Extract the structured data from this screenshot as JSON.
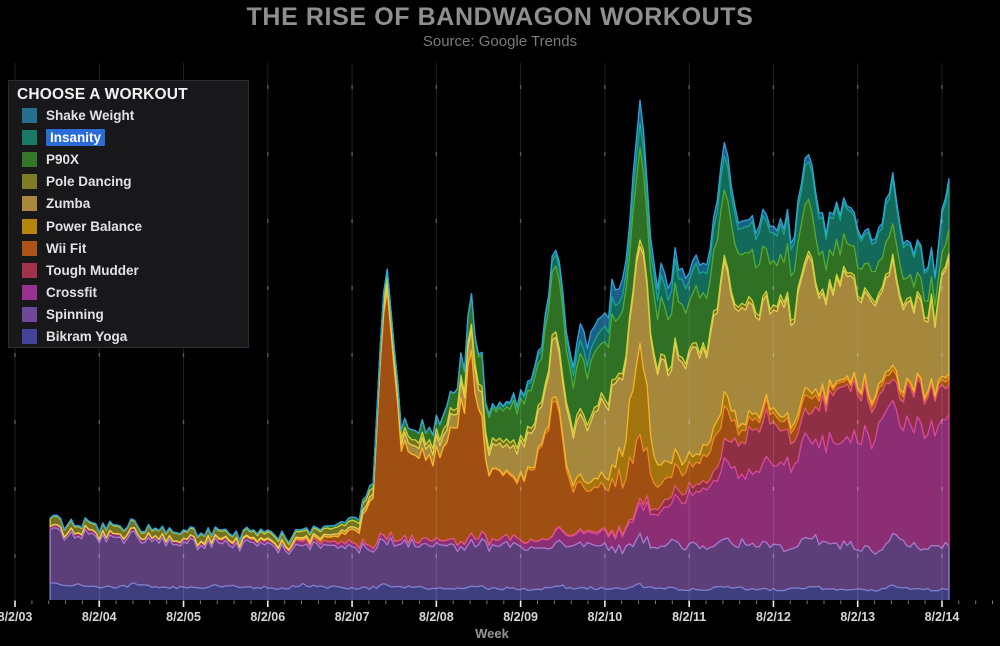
{
  "legend": {
    "header": "CHOOSE A WORKOUT",
    "selection_color": "#2a6bd8",
    "selected_item": "Insanity"
  },
  "chart_data": {
    "type": "area",
    "stacked": true,
    "title": "THE RISE OF BANDWAGON WORKOUTS",
    "subtitle": "Source: Google Trends",
    "xlabel": "Week",
    "ylabel": "",
    "y_axis": "hidden (relative search interest, arbitrary units)",
    "background": "#000000",
    "grid": "vertical-yearly",
    "legend_position": "top-left",
    "x_unit": "decimal_year",
    "x_range": [
      2003.583,
      2014.75
    ],
    "x_ticks": [
      {
        "pos": 2003.583,
        "label": "8/2/03"
      },
      {
        "pos": 2004.583,
        "label": "8/2/04"
      },
      {
        "pos": 2005.583,
        "label": "8/2/05"
      },
      {
        "pos": 2006.583,
        "label": "8/2/06"
      },
      {
        "pos": 2007.583,
        "label": "8/2/07"
      },
      {
        "pos": 2008.583,
        "label": "8/2/08"
      },
      {
        "pos": 2009.583,
        "label": "8/2/09"
      },
      {
        "pos": 2010.583,
        "label": "8/2/10"
      },
      {
        "pos": 2011.583,
        "label": "8/2/11"
      },
      {
        "pos": 2012.583,
        "label": "8/2/12"
      },
      {
        "pos": 2013.583,
        "label": "8/2/13"
      },
      {
        "pos": 2014.583,
        "label": "8/2/14"
      }
    ],
    "x": [
      2004.0,
      2004.167,
      2004.333,
      2004.5,
      2004.667,
      2004.833,
      2005.0,
      2005.167,
      2005.333,
      2005.5,
      2005.667,
      2005.833,
      2006.0,
      2006.167,
      2006.333,
      2006.5,
      2006.667,
      2006.833,
      2007.0,
      2007.167,
      2007.333,
      2007.5,
      2007.667,
      2007.833,
      2008.0,
      2008.167,
      2008.333,
      2008.5,
      2008.667,
      2008.833,
      2009.0,
      2009.167,
      2009.333,
      2009.5,
      2009.667,
      2009.833,
      2010.0,
      2010.167,
      2010.333,
      2010.5,
      2010.667,
      2010.833,
      2011.0,
      2011.167,
      2011.333,
      2011.5,
      2011.667,
      2011.833,
      2012.0,
      2012.167,
      2012.333,
      2012.5,
      2012.667,
      2012.833,
      2013.0,
      2013.167,
      2013.333,
      2013.5,
      2013.667,
      2013.833,
      2014.0,
      2014.167,
      2014.333,
      2014.5,
      2014.667
    ],
    "series": [
      {
        "id": "shake-weight",
        "label": "Shake Weight",
        "swatch": "#26708e",
        "fill": "#1c5f86",
        "stroke": "#2fa2dc",
        "values": [
          0,
          0,
          0,
          0,
          0,
          0,
          0,
          0,
          0,
          0,
          0,
          0,
          0,
          0,
          0,
          0,
          0,
          0,
          0,
          0,
          0,
          0,
          0,
          0,
          0,
          0,
          0,
          0,
          0,
          0,
          0,
          0,
          1,
          2,
          3,
          4,
          6,
          8,
          20,
          15,
          18,
          16,
          25,
          14,
          12,
          11,
          10,
          11,
          14,
          8,
          7,
          7,
          6,
          7,
          9,
          5,
          5,
          4,
          4,
          5,
          6,
          4,
          3,
          3,
          6
        ]
      },
      {
        "id": "insanity",
        "label": "Insanity",
        "selected": true,
        "swatch": "#187a67",
        "fill": "#136a5b",
        "stroke": "#17a78a",
        "values": [
          0,
          0,
          0,
          0,
          0,
          0,
          0,
          0,
          0,
          0,
          0,
          0,
          0,
          0,
          0,
          0,
          0,
          0,
          0,
          0,
          0,
          0,
          0,
          0,
          0,
          0,
          0,
          0,
          0,
          0,
          2,
          3,
          4,
          6,
          8,
          10,
          14,
          13,
          14,
          15,
          18,
          18,
          26,
          22,
          24,
          26,
          25,
          26,
          38,
          30,
          32,
          33,
          31,
          32,
          45,
          36,
          38,
          38,
          35,
          34,
          48,
          36,
          34,
          32,
          50
        ]
      },
      {
        "id": "p90x",
        "label": "P90X",
        "swatch": "#35772a",
        "fill": "#2f7024",
        "stroke": "#55ab2f",
        "values": [
          1,
          1,
          1,
          1,
          1,
          1,
          1,
          1,
          1,
          1,
          1,
          1,
          1,
          1,
          1,
          2,
          2,
          2,
          2,
          2,
          3,
          3,
          4,
          5,
          8,
          9,
          11,
          14,
          18,
          22,
          30,
          32,
          36,
          40,
          44,
          50,
          80,
          55,
          58,
          60,
          70,
          68,
          95,
          60,
          58,
          56,
          58,
          62,
          78,
          58,
          54,
          50,
          48,
          50,
          60,
          40,
          36,
          32,
          30,
          32,
          38,
          24,
          20,
          18,
          28
        ]
      },
      {
        "id": "pole-dancing",
        "label": "Pole Dancing",
        "swatch": "#7f7c26",
        "fill": "#74721f",
        "stroke": "#cdd13a",
        "values": [
          9,
          9,
          8,
          8,
          8,
          8,
          8,
          8,
          8,
          8,
          8,
          8,
          8,
          7,
          7,
          7,
          7,
          7,
          7,
          7,
          7,
          7,
          7,
          7,
          7,
          6,
          6,
          6,
          6,
          6,
          6,
          6,
          6,
          6,
          6,
          6,
          6,
          6,
          6,
          6,
          6,
          6,
          6,
          5,
          5,
          5,
          5,
          5,
          5,
          5,
          5,
          5,
          5,
          5,
          5,
          4,
          4,
          4,
          4,
          4,
          4,
          4,
          4,
          4,
          4
        ]
      },
      {
        "id": "zumba",
        "label": "Zumba",
        "swatch": "#a9873b",
        "fill": "#a5883c",
        "stroke": "#e8cd52",
        "values": [
          0,
          0,
          0,
          0,
          0,
          0,
          0,
          0,
          0,
          0,
          0,
          1,
          1,
          1,
          1,
          1,
          1,
          1,
          2,
          2,
          3,
          3,
          4,
          5,
          8,
          8,
          10,
          12,
          14,
          16,
          24,
          24,
          28,
          32,
          36,
          42,
          70,
          58,
          64,
          70,
          85,
          90,
          120,
          105,
          108,
          112,
          110,
          112,
          140,
          118,
          120,
          122,
          118,
          118,
          145,
          112,
          112,
          110,
          104,
          102,
          120,
          92,
          88,
          80,
          130
        ]
      },
      {
        "id": "power-balance",
        "label": "Power Balance",
        "swatch": "#b5850c",
        "fill": "#a1740e",
        "stroke": "#f5b52a",
        "values": [
          0,
          0,
          0,
          0,
          0,
          0,
          0,
          0,
          0,
          0,
          0,
          0,
          0,
          0,
          0,
          0,
          0,
          0,
          0,
          0,
          0,
          0,
          0,
          0,
          0,
          0,
          0,
          0,
          0,
          0,
          1,
          1,
          1,
          2,
          2,
          3,
          5,
          6,
          8,
          10,
          14,
          40,
          110,
          30,
          18,
          12,
          10,
          12,
          16,
          8,
          6,
          5,
          5,
          6,
          8,
          4,
          3,
          3,
          3,
          4,
          5,
          3,
          2,
          2,
          6
        ]
      },
      {
        "id": "wii-fit",
        "label": "Wii Fit",
        "swatch": "#ac5317",
        "fill": "#a04f12",
        "stroke": "#f08726",
        "values": [
          0,
          0,
          0,
          0,
          0,
          0,
          0,
          0,
          0,
          0,
          0,
          0,
          0,
          0,
          0,
          0,
          0,
          1,
          2,
          3,
          5,
          10,
          18,
          60,
          280,
          110,
          95,
          90,
          100,
          130,
          195,
          90,
          80,
          60,
          80,
          100,
          150,
          55,
          48,
          45,
          55,
          60,
          75,
          28,
          24,
          22,
          24,
          32,
          40,
          14,
          12,
          10,
          10,
          14,
          18,
          8,
          6,
          6,
          6,
          8,
          10,
          5,
          4,
          4,
          8
        ]
      },
      {
        "id": "tough-mudder",
        "label": "Tough Mudder",
        "swatch": "#a23149",
        "fill": "#8f2f45",
        "stroke": "#e25575",
        "values": [
          0,
          0,
          0,
          0,
          0,
          0,
          0,
          0,
          0,
          0,
          0,
          0,
          0,
          0,
          0,
          0,
          0,
          0,
          0,
          0,
          0,
          0,
          0,
          0,
          0,
          0,
          0,
          0,
          0,
          0,
          0,
          0,
          0,
          0,
          0,
          0,
          1,
          1,
          1,
          2,
          2,
          2,
          5,
          6,
          8,
          10,
          8,
          8,
          20,
          34,
          46,
          50,
          38,
          28,
          30,
          44,
          56,
          60,
          44,
          32,
          26,
          36,
          44,
          40,
          32
        ]
      },
      {
        "id": "crossfit",
        "label": "Crossfit",
        "swatch": "#993190",
        "fill": "#8c2e74",
        "stroke": "#d8499c",
        "values": [
          4,
          4,
          4,
          4,
          4,
          4,
          4,
          4,
          4,
          4,
          4,
          4,
          4,
          4,
          4,
          4,
          4,
          4,
          5,
          4,
          4,
          5,
          5,
          5,
          6,
          5,
          5,
          6,
          6,
          6,
          8,
          7,
          7,
          8,
          8,
          9,
          14,
          12,
          13,
          15,
          16,
          18,
          34,
          38,
          44,
          52,
          58,
          62,
          88,
          78,
          84,
          90,
          94,
          98,
          122,
          110,
          116,
          122,
          126,
          130,
          150,
          132,
          134,
          136,
          148
        ]
      },
      {
        "id": "spinning",
        "label": "Spinning",
        "swatch": "#70489a",
        "fill": "#5c3e78",
        "stroke": "#a77bd0",
        "values": [
          58,
          55,
          56,
          57,
          54,
          50,
          53,
          50,
          51,
          52,
          49,
          46,
          49,
          46,
          47,
          48,
          45,
          43,
          47,
          45,
          46,
          47,
          45,
          43,
          50,
          48,
          49,
          50,
          47,
          44,
          49,
          47,
          48,
          49,
          46,
          43,
          50,
          47,
          48,
          48,
          45,
          43,
          54,
          48,
          49,
          49,
          46,
          44,
          56,
          49,
          50,
          50,
          47,
          44,
          57,
          49,
          50,
          49,
          46,
          43,
          55,
          48,
          48,
          47,
          48
        ]
      },
      {
        "id": "bikram-yoga",
        "label": "Bikram Yoga",
        "swatch": "#44439a",
        "fill": "#3f3f80",
        "stroke": "#8080d0",
        "values": [
          20,
          17,
          16,
          15,
          15,
          15,
          18,
          16,
          15,
          14,
          14,
          14,
          17,
          15,
          14,
          14,
          13,
          14,
          17,
          15,
          14,
          14,
          13,
          14,
          17,
          15,
          14,
          13,
          13,
          13,
          16,
          14,
          13,
          13,
          12,
          13,
          16,
          14,
          13,
          13,
          12,
          13,
          17,
          14,
          13,
          12,
          12,
          12,
          16,
          14,
          12,
          12,
          11,
          12,
          15,
          13,
          12,
          11,
          11,
          11,
          15,
          13,
          12,
          11,
          12
        ]
      }
    ]
  }
}
